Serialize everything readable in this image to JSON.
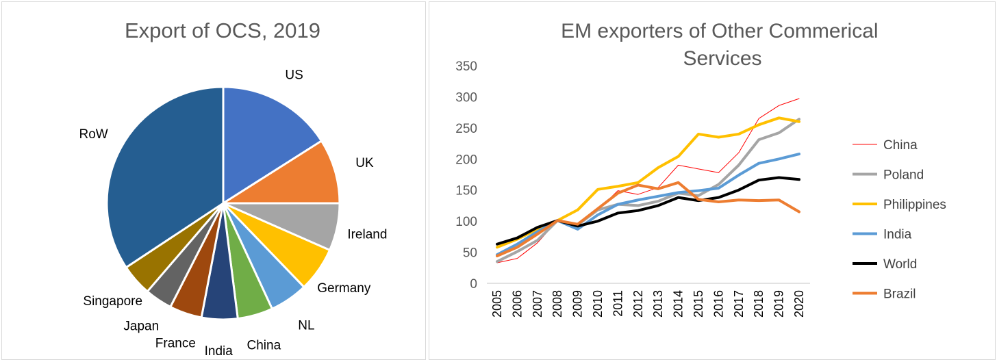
{
  "chart_data": [
    {
      "type": "pie",
      "title": "Export of OCS, 2019",
      "unit": "approx. share %",
      "slices": [
        {
          "label": "US",
          "value": 16.0,
          "color": "#4472c4"
        },
        {
          "label": "UK",
          "value": 9.0,
          "color": "#ed7d31"
        },
        {
          "label": "Ireland",
          "value": 6.6,
          "color": "#a5a5a5"
        },
        {
          "label": "Germany",
          "value": 6.2,
          "color": "#ffc000"
        },
        {
          "label": "NL",
          "value": 5.3,
          "color": "#5b9bd5"
        },
        {
          "label": "China",
          "value": 4.9,
          "color": "#70ad47"
        },
        {
          "label": "India",
          "value": 5.0,
          "color": "#264478"
        },
        {
          "label": "France",
          "value": 4.5,
          "color": "#9e480e"
        },
        {
          "label": "Japan",
          "value": 3.8,
          "color": "#636363"
        },
        {
          "label": "Singapore",
          "value": 4.4,
          "color": "#997300"
        },
        {
          "label": "RoW",
          "value": 34.3,
          "color": "#255e91"
        }
      ]
    },
    {
      "type": "line",
      "title": "EM exporters of Other Commerical Services",
      "x": [
        "2005",
        "2006",
        "2007",
        "2008",
        "2009",
        "2010",
        "2011",
        "2012",
        "2013",
        "2014",
        "2015",
        "2016",
        "2017",
        "2018",
        "2019",
        "2020"
      ],
      "ylim": [
        0,
        350
      ],
      "yticks": [
        "0",
        "50",
        "100",
        "150",
        "200",
        "250",
        "300",
        "350"
      ],
      "legend_position": "right",
      "grid": false,
      "series": [
        {
          "name": "China",
          "color": "#ff0000",
          "width": 1,
          "values": [
            33,
            40,
            65,
            101,
            92,
            118,
            149,
            143,
            154,
            190,
            184,
            178,
            210,
            265,
            286,
            297
          ]
        },
        {
          "name": "Poland",
          "color": "#a5a5a5",
          "width": 4,
          "values": [
            35,
            51,
            69,
            101,
            94,
            118,
            127,
            125,
            132,
            145,
            141,
            159,
            190,
            231,
            242,
            264
          ]
        },
        {
          "name": "Philippines",
          "color": "#ffc000",
          "width": 4,
          "values": [
            58,
            71,
            87,
            101,
            118,
            151,
            156,
            162,
            186,
            204,
            240,
            235,
            240,
            255,
            266,
            260
          ]
        },
        {
          "name": "India",
          "color": "#5b9bd5",
          "width": 4,
          "values": [
            46,
            63,
            83,
            101,
            87,
            110,
            127,
            134,
            140,
            146,
            149,
            153,
            174,
            193,
            200,
            208
          ]
        },
        {
          "name": "World",
          "color": "#000000",
          "width": 4,
          "values": [
            63,
            73,
            90,
            101,
            92,
            100,
            113,
            117,
            125,
            138,
            133,
            138,
            150,
            166,
            170,
            167
          ]
        },
        {
          "name": "Brazil",
          "color": "#ed7d31",
          "width": 4,
          "values": [
            44,
            58,
            79,
            101,
            95,
            120,
            145,
            158,
            152,
            162,
            135,
            131,
            134,
            133,
            134,
            115
          ]
        }
      ]
    }
  ]
}
